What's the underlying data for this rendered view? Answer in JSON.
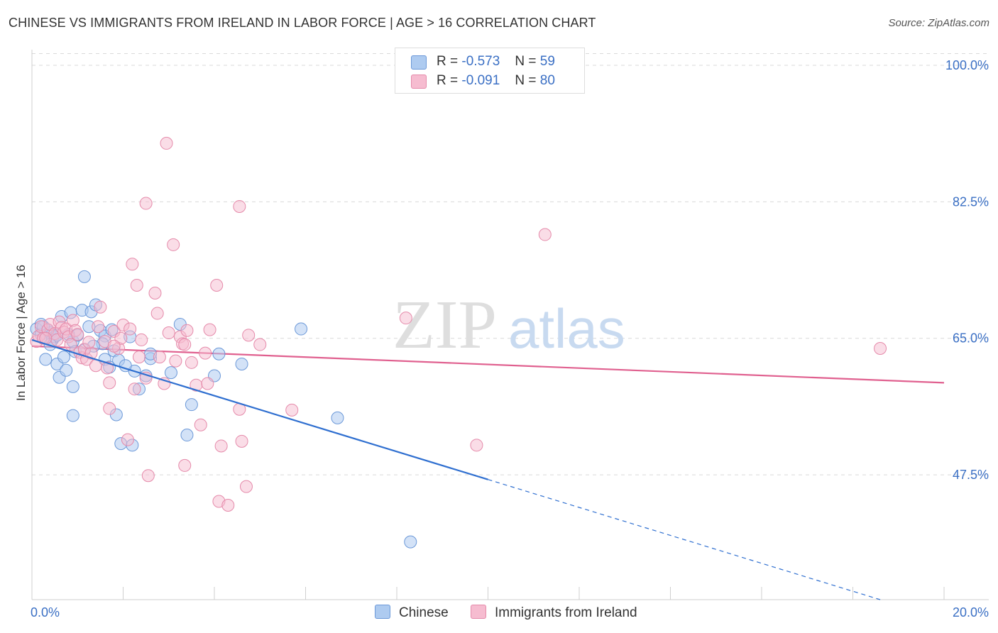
{
  "header": {
    "title": "CHINESE VS IMMIGRANTS FROM IRELAND IN LABOR FORCE | AGE > 16 CORRELATION CHART",
    "source": "Source: ZipAtlas.com"
  },
  "legend": {
    "rows": [
      {
        "r_label": "R =",
        "r_value": "-0.573",
        "n_label": "N =",
        "n_value": "59"
      },
      {
        "r_label": "R =",
        "r_value": "-0.091",
        "n_label": "N =",
        "n_value": "80"
      }
    ],
    "bottom": [
      "Chinese",
      "Immigrants from Ireland"
    ]
  },
  "watermark": {
    "zip": "ZIP",
    "atlas": "atlas"
  },
  "colors": {
    "chinese_fill": "#aecbf0",
    "chinese_stroke": "#6b98d8",
    "chinese_line": "#2f6fd0",
    "ireland_fill": "#f6bcd0",
    "ireland_stroke": "#e58aaa",
    "ireland_line": "#e0608f",
    "accent_text": "#3a6fc4",
    "grid": "#d9d9d9"
  },
  "chart_data": {
    "type": "scatter",
    "title": "CHINESE VS IMMIGRANTS FROM IRELAND IN LABOR FORCE | AGE > 16 CORRELATION CHART",
    "xlabel": "",
    "ylabel": "In Labor Force | Age > 16",
    "xlim": [
      0,
      20
    ],
    "ylim": [
      31.5,
      102
    ],
    "x_tick_labels": [
      "0.0%",
      "20.0%"
    ],
    "y_ticks": [
      47.5,
      65.0,
      82.5,
      100.0
    ],
    "y_tick_labels": [
      "47.5%",
      "65.0%",
      "82.5%",
      "100.0%"
    ],
    "grid": true,
    "series": [
      {
        "name": "Chinese",
        "r": -0.573,
        "n": 59,
        "trend": {
          "x0": 0,
          "y0": 64.8,
          "x1": 10,
          "y1": 46.9,
          "dash_to_x": 18.6,
          "dash_to_y": 31.5
        },
        "points": [
          [
            0.1,
            66.2
          ],
          [
            0.2,
            65.5
          ],
          [
            0.3,
            65.0
          ],
          [
            0.35,
            66.0
          ],
          [
            0.4,
            65.7
          ],
          [
            0.45,
            64.8
          ],
          [
            0.5,
            65.2
          ],
          [
            0.55,
            65.4
          ],
          [
            0.3,
            62.3
          ],
          [
            0.55,
            61.7
          ],
          [
            0.7,
            62.6
          ],
          [
            0.6,
            60.0
          ],
          [
            0.75,
            60.9
          ],
          [
            0.9,
            58.8
          ],
          [
            0.9,
            55.1
          ],
          [
            0.9,
            64.6
          ],
          [
            0.95,
            63.3
          ],
          [
            1.0,
            65.4
          ],
          [
            0.65,
            67.8
          ],
          [
            0.85,
            68.3
          ],
          [
            1.1,
            68.6
          ],
          [
            1.3,
            68.4
          ],
          [
            1.4,
            69.3
          ],
          [
            1.15,
            72.9
          ],
          [
            1.25,
            66.5
          ],
          [
            1.5,
            66.0
          ],
          [
            1.6,
            65.3
          ],
          [
            1.55,
            64.3
          ],
          [
            1.6,
            62.3
          ],
          [
            1.7,
            61.3
          ],
          [
            1.8,
            63.4
          ],
          [
            1.9,
            62.2
          ],
          [
            1.85,
            55.2
          ],
          [
            1.95,
            51.5
          ],
          [
            2.2,
            51.3
          ],
          [
            2.15,
            65.2
          ],
          [
            2.25,
            60.8
          ],
          [
            2.35,
            58.5
          ],
          [
            2.5,
            60.2
          ],
          [
            2.6,
            62.4
          ],
          [
            2.6,
            63.0
          ],
          [
            3.05,
            60.6
          ],
          [
            3.25,
            66.8
          ],
          [
            3.4,
            52.6
          ],
          [
            3.5,
            56.5
          ],
          [
            2.05,
            61.5
          ],
          [
            1.35,
            64.0
          ],
          [
            4.0,
            60.2
          ],
          [
            4.1,
            63.0
          ],
          [
            4.6,
            61.7
          ],
          [
            5.9,
            66.2
          ],
          [
            6.7,
            54.8
          ],
          [
            8.3,
            38.9
          ],
          [
            1.15,
            63.5
          ],
          [
            0.25,
            66.5
          ],
          [
            0.4,
            64.2
          ],
          [
            0.8,
            65.5
          ],
          [
            1.75,
            66.1
          ],
          [
            0.2,
            66.8
          ]
        ]
      },
      {
        "name": "Immigrants from Ireland",
        "r": -0.091,
        "n": 80,
        "trend": {
          "x0": 0,
          "y0": 64.0,
          "x1": 20,
          "y1": 59.3
        },
        "points": [
          [
            0.1,
            64.6
          ],
          [
            0.15,
            65.3
          ],
          [
            0.2,
            66.5
          ],
          [
            0.25,
            65.0
          ],
          [
            0.35,
            66.1
          ],
          [
            0.4,
            66.8
          ],
          [
            0.5,
            65.6
          ],
          [
            0.55,
            64.8
          ],
          [
            0.6,
            67.1
          ],
          [
            0.65,
            66.4
          ],
          [
            0.7,
            65.8
          ],
          [
            0.75,
            66.2
          ],
          [
            0.8,
            65.2
          ],
          [
            0.85,
            64.2
          ],
          [
            0.9,
            67.3
          ],
          [
            0.95,
            66.0
          ],
          [
            1.0,
            65.5
          ],
          [
            1.05,
            63.2
          ],
          [
            1.1,
            62.5
          ],
          [
            1.15,
            63.6
          ],
          [
            1.2,
            62.3
          ],
          [
            1.3,
            63.1
          ],
          [
            1.4,
            61.5
          ],
          [
            1.5,
            69.0
          ],
          [
            1.6,
            64.6
          ],
          [
            1.65,
            61.2
          ],
          [
            1.7,
            59.3
          ],
          [
            1.7,
            56.0
          ],
          [
            1.8,
            65.9
          ],
          [
            1.9,
            63.7
          ],
          [
            1.95,
            65.0
          ],
          [
            2.0,
            66.7
          ],
          [
            2.1,
            52.0
          ],
          [
            2.15,
            66.2
          ],
          [
            2.2,
            74.5
          ],
          [
            2.25,
            58.5
          ],
          [
            2.3,
            71.8
          ],
          [
            2.35,
            62.6
          ],
          [
            2.4,
            64.8
          ],
          [
            2.5,
            59.9
          ],
          [
            2.5,
            82.3
          ],
          [
            2.55,
            47.4
          ],
          [
            2.7,
            70.8
          ],
          [
            2.75,
            68.2
          ],
          [
            2.8,
            62.6
          ],
          [
            2.9,
            59.2
          ],
          [
            2.95,
            90.0
          ],
          [
            3.0,
            65.7
          ],
          [
            3.1,
            77.0
          ],
          [
            3.15,
            62.1
          ],
          [
            3.25,
            65.2
          ],
          [
            3.3,
            64.3
          ],
          [
            3.35,
            48.7
          ],
          [
            3.35,
            64.2
          ],
          [
            3.5,
            61.9
          ],
          [
            3.6,
            59.0
          ],
          [
            3.7,
            53.9
          ],
          [
            3.8,
            63.1
          ],
          [
            3.85,
            59.2
          ],
          [
            3.9,
            66.1
          ],
          [
            4.05,
            71.8
          ],
          [
            4.1,
            44.1
          ],
          [
            4.15,
            51.2
          ],
          [
            4.3,
            43.6
          ],
          [
            4.55,
            81.9
          ],
          [
            4.55,
            55.9
          ],
          [
            4.6,
            51.8
          ],
          [
            4.7,
            46.0
          ],
          [
            4.75,
            65.4
          ],
          [
            5.0,
            64.2
          ],
          [
            5.7,
            55.8
          ],
          [
            3.4,
            66.0
          ],
          [
            8.2,
            67.6
          ],
          [
            9.75,
            51.3
          ],
          [
            11.25,
            78.3
          ],
          [
            18.6,
            63.7
          ],
          [
            1.25,
            64.5
          ],
          [
            1.45,
            66.5
          ],
          [
            0.3,
            65.0
          ],
          [
            1.8,
            64.0
          ]
        ]
      }
    ]
  }
}
